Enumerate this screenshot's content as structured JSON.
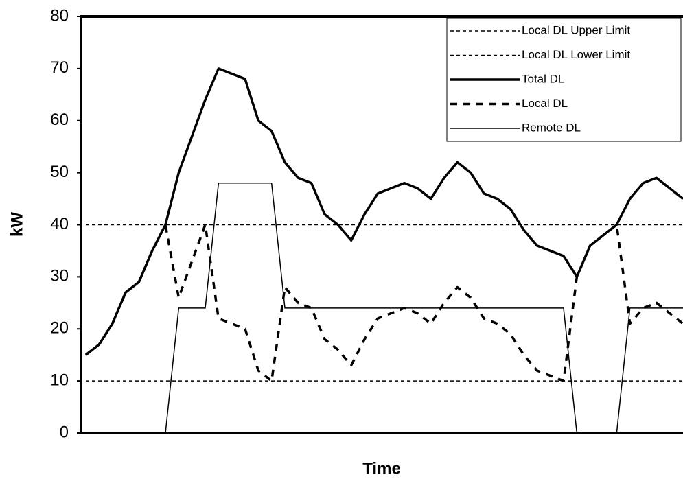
{
  "chart_data": {
    "type": "line",
    "xlabel": "Time",
    "ylabel": "kW",
    "categories": [
      null,
      null,
      null,
      null,
      null,
      null,
      null,
      null,
      null,
      null,
      null,
      null,
      null,
      null,
      null,
      null,
      null,
      null,
      null,
      null,
      null,
      null,
      null,
      null,
      null,
      null,
      null,
      null,
      null,
      null,
      null,
      null,
      null,
      null,
      null,
      null,
      null,
      null,
      null,
      null,
      null,
      null,
      null,
      null,
      null,
      null
    ],
    "ylim": [
      0,
      80
    ],
    "yticks": [
      0,
      10,
      20,
      30,
      40,
      50,
      60,
      70,
      80
    ],
    "grid": false,
    "legend": "upper right",
    "series": [
      {
        "name": "Local DL Upper Limit",
        "color": "#000000",
        "dash": "dotted",
        "width": 1.5,
        "values": [
          40,
          40,
          40,
          40,
          40,
          40,
          40,
          40,
          40,
          40,
          40,
          40,
          40,
          40,
          40,
          40,
          40,
          40,
          40,
          40,
          40,
          40,
          40,
          40,
          40,
          40,
          40,
          40,
          40,
          40,
          40,
          40,
          40,
          40,
          40,
          40,
          40,
          40,
          40,
          40,
          40,
          40,
          40,
          40,
          40,
          40
        ]
      },
      {
        "name": "Local DL Lower Limit",
        "color": "#000000",
        "dash": "dotted",
        "width": 1.5,
        "values": [
          10,
          10,
          10,
          10,
          10,
          10,
          10,
          10,
          10,
          10,
          10,
          10,
          10,
          10,
          10,
          10,
          10,
          10,
          10,
          10,
          10,
          10,
          10,
          10,
          10,
          10,
          10,
          10,
          10,
          10,
          10,
          10,
          10,
          10,
          10,
          10,
          10,
          10,
          10,
          10,
          10,
          10,
          10,
          10,
          10,
          10
        ]
      },
      {
        "name": "Total DL",
        "color": "#000000",
        "dash": "solid",
        "width": 3.5,
        "values": [
          15,
          17,
          21,
          27,
          29,
          35,
          40,
          50,
          57,
          64,
          70,
          69,
          68,
          60,
          58,
          52,
          49,
          48,
          42,
          40,
          37,
          42,
          46,
          47,
          48,
          47,
          45,
          49,
          52,
          50,
          46,
          45,
          43,
          39,
          36,
          35,
          34,
          30,
          36,
          38,
          40,
          45,
          48,
          49,
          47,
          45
        ]
      },
      {
        "name": "Local DL",
        "color": "#000000",
        "dash": "dashed",
        "width": 3.5,
        "values": [
          15,
          17,
          21,
          27,
          29,
          35,
          40,
          26,
          33,
          40,
          22,
          21,
          20,
          12,
          10,
          28,
          25,
          24,
          18,
          16,
          13,
          18,
          22,
          23,
          24,
          23,
          21,
          25,
          28,
          26,
          22,
          21,
          19,
          15,
          12,
          11,
          10,
          30,
          36,
          38,
          40,
          21,
          24,
          25,
          23,
          21
        ]
      },
      {
        "name": "Remote DL",
        "color": "#000000",
        "dash": "solid",
        "width": 1.5,
        "values": [
          0,
          0,
          0,
          0,
          0,
          0,
          0,
          24,
          24,
          24,
          48,
          48,
          48,
          48,
          48,
          24,
          24,
          24,
          24,
          24,
          24,
          24,
          24,
          24,
          24,
          24,
          24,
          24,
          24,
          24,
          24,
          24,
          24,
          24,
          24,
          24,
          24,
          0,
          0,
          0,
          0,
          24,
          24,
          24,
          24,
          24
        ]
      }
    ]
  }
}
